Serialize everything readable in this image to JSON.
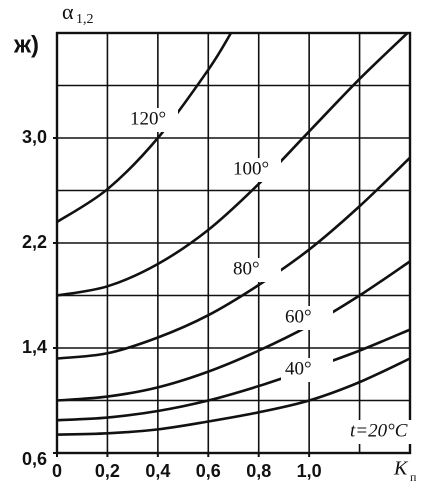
{
  "chart_data": {
    "type": "line",
    "panel_label": "ж)",
    "y_label": "α",
    "y_label_sub": "1,2",
    "x_label": "K",
    "x_label_sub": "п",
    "xlim": [
      0,
      1.4
    ],
    "ylim": [
      0.6,
      3.8
    ],
    "xticks": [
      0,
      {
        "value": 0.2,
        "label": "0,2"
      },
      {
        "value": 0.4,
        "label": "0,4"
      },
      {
        "value": 0.6,
        "label": "0,6"
      },
      {
        "value": 0.8,
        "label": "0,8"
      },
      {
        "value": 1.0,
        "label": "1,0"
      }
    ],
    "xgrid": [
      0.2,
      0.4,
      0.6,
      0.8,
      1.0,
      1.2
    ],
    "yticks": [
      {
        "value": 0.6,
        "label": "0,6"
      },
      {
        "value": 1.4,
        "label": "1,4"
      },
      {
        "value": 2.2,
        "label": "2,2"
      },
      {
        "value": 3.0,
        "label": "3,0"
      }
    ],
    "ygrid": [
      1.0,
      1.4,
      1.8,
      2.2,
      2.6,
      3.0,
      3.4
    ],
    "grid": true,
    "series": [
      {
        "name": "120°",
        "color": "#111111",
        "x": [
          0,
          0.2,
          0.4,
          0.6,
          0.69
        ],
        "values": [
          2.36,
          2.61,
          3.0,
          3.52,
          3.8
        ]
      },
      {
        "name": "100°",
        "color": "#111111",
        "x": [
          0,
          0.2,
          0.4,
          0.6,
          0.8,
          1.0,
          1.2,
          1.39
        ],
        "values": [
          1.8,
          1.87,
          2.04,
          2.3,
          2.65,
          3.05,
          3.45,
          3.8
        ]
      },
      {
        "name": "80°",
        "color": "#111111",
        "x": [
          0,
          0.2,
          0.4,
          0.6,
          0.8,
          1.0,
          1.2,
          1.4
        ],
        "values": [
          1.32,
          1.36,
          1.48,
          1.65,
          1.88,
          2.15,
          2.48,
          2.85
        ]
      },
      {
        "name": "60°",
        "color": "#111111",
        "x": [
          0,
          0.2,
          0.4,
          0.6,
          0.8,
          1.0,
          1.2,
          1.4
        ],
        "values": [
          1.0,
          1.03,
          1.1,
          1.22,
          1.38,
          1.57,
          1.8,
          2.06
        ]
      },
      {
        "name": "40°",
        "color": "#111111",
        "x": [
          0,
          0.2,
          0.4,
          0.6,
          0.8,
          1.0,
          1.2,
          1.4
        ],
        "values": [
          0.85,
          0.87,
          0.92,
          1.0,
          1.11,
          1.24,
          1.38,
          1.54
        ]
      },
      {
        "name": "t=20°C",
        "color": "#111111",
        "x": [
          0,
          0.2,
          0.4,
          0.6,
          0.8,
          1.0,
          1.2,
          1.4
        ],
        "values": [
          0.74,
          0.75,
          0.78,
          0.84,
          0.91,
          1.0,
          1.14,
          1.32
        ]
      }
    ]
  }
}
